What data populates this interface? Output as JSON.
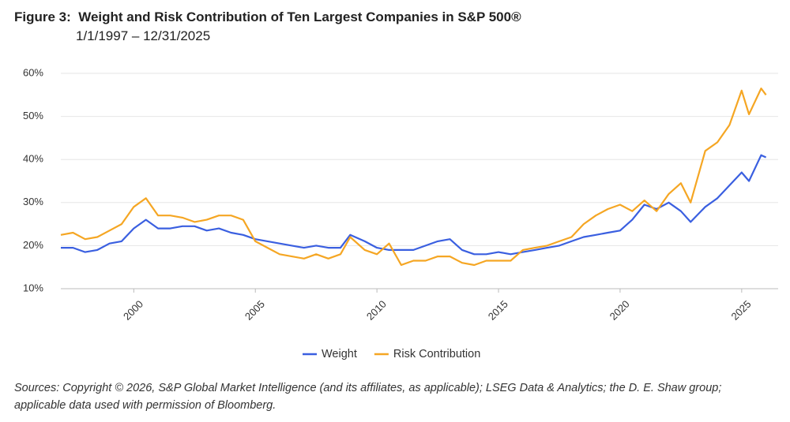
{
  "chart_data": {
    "type": "line",
    "title": "Figure 3:  Weight and Risk Contribution of Ten Largest Companies in S&P 500®",
    "subtitle": "1/1/1997 – 12/31/2025",
    "source": "Sources: Copyright © 2026, S&P Global Market Intelligence (and its affiliates, as applicable); LSEG Data & Analytics; the D. E. Shaw group; applicable data used with permission of Bloomberg.",
    "x": [
      1997,
      1997.5,
      1998,
      1998.5,
      1999,
      1999.5,
      2000,
      2000.5,
      2001,
      2001.5,
      2002,
      2002.5,
      2003,
      2003.5,
      2004,
      2004.5,
      2005,
      2005.5,
      2006,
      2006.5,
      2007,
      2007.5,
      2008,
      2008.5,
      2008.9,
      2009.5,
      2010,
      2010.5,
      2011,
      2011.5,
      2012,
      2012.5,
      2013,
      2013.5,
      2014,
      2014.5,
      2015,
      2015.5,
      2016,
      2016.5,
      2017,
      2017.5,
      2018,
      2018.5,
      2019,
      2019.5,
      2020,
      2020.5,
      2021,
      2021.5,
      2022,
      2022.5,
      2022.9,
      2023.5,
      2024,
      2024.5,
      2025,
      2025.3,
      2025.8,
      2026
    ],
    "series": [
      {
        "name": "Weight",
        "color": "#3a5fe0",
        "values": [
          19.5,
          19.5,
          18.5,
          19,
          20.5,
          21,
          24,
          26,
          24,
          24,
          24.5,
          24.5,
          23.5,
          24,
          23,
          22.5,
          21.5,
          21,
          20.5,
          20,
          19.5,
          20,
          19.5,
          19.5,
          22.5,
          21,
          19.5,
          19,
          19,
          19,
          20,
          21,
          21.5,
          19,
          18,
          18,
          18.5,
          18,
          18.5,
          19,
          19.5,
          20,
          21,
          22,
          22.5,
          23,
          23.5,
          26,
          29.5,
          28.5,
          30,
          28,
          25.5,
          29,
          31,
          34,
          37,
          35,
          41,
          40.5
        ]
      },
      {
        "name": "Risk Contribution",
        "color": "#f5a623",
        "values": [
          22.5,
          23,
          21.5,
          22,
          23.5,
          25,
          29,
          31,
          27,
          27,
          26.5,
          25.5,
          26,
          27,
          27,
          26,
          21,
          19.5,
          18,
          17.5,
          17,
          18,
          17,
          18,
          22,
          19,
          18,
          20.5,
          15.5,
          16.5,
          16.5,
          17.5,
          17.5,
          16,
          15.5,
          16.5,
          16.5,
          16.5,
          19,
          19.5,
          20,
          21,
          22,
          25,
          27,
          28.5,
          29.5,
          28,
          30.5,
          28,
          32,
          34.5,
          30,
          42,
          44,
          48,
          56,
          50.5,
          56.5,
          55
        ]
      }
    ],
    "xlim": [
      1997,
      2026.5
    ],
    "xticks": [
      2000,
      2005,
      2010,
      2015,
      2020,
      2025
    ],
    "ylim": [
      10,
      60
    ],
    "yticks": [
      {
        "value": 10,
        "label": "10%"
      },
      {
        "value": 20,
        "label": "20%"
      },
      {
        "value": 30,
        "label": "30%"
      },
      {
        "value": 40,
        "label": "40%"
      },
      {
        "value": 50,
        "label": "50%"
      },
      {
        "value": 60,
        "label": "60%"
      }
    ],
    "grid": true,
    "legend": "bottom"
  }
}
